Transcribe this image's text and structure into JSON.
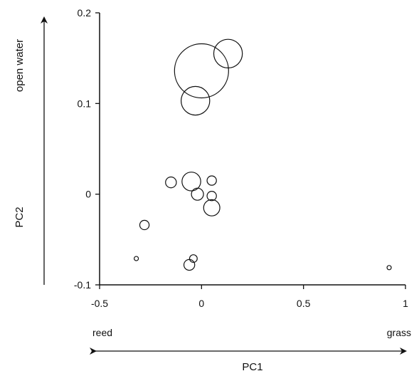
{
  "chart_data": {
    "type": "scatter",
    "variant": "bubble",
    "xlabel": "PC1",
    "ylabel": "PC2",
    "xlim": [
      -0.5,
      1.0
    ],
    "ylim": [
      -0.1,
      0.2
    ],
    "x_ticks": [
      {
        "value": -0.5,
        "label": "-0.5"
      },
      {
        "value": 0,
        "label": "0"
      },
      {
        "value": 0.5,
        "label": "0.5"
      },
      {
        "value": 1,
        "label": "1"
      }
    ],
    "y_ticks": [
      {
        "value": -0.1,
        "label": "-0.1"
      },
      {
        "value": 0,
        "label": "0"
      },
      {
        "value": 0.1,
        "label": "0.1"
      },
      {
        "value": 0.2,
        "label": "0.2"
      }
    ],
    "grid": false,
    "marker": "open circle, area proportional to size",
    "x_arrow_labels": {
      "left": "reed",
      "right": "grass"
    },
    "y_arrow_label": "open water",
    "points": [
      {
        "x": 0.0,
        "y": 0.136,
        "size": 1.0
      },
      {
        "x": 0.13,
        "y": 0.155,
        "size": 0.28
      },
      {
        "x": -0.03,
        "y": 0.103,
        "size": 0.28
      },
      {
        "x": -0.05,
        "y": 0.014,
        "size": 0.12
      },
      {
        "x": -0.15,
        "y": 0.013,
        "size": 0.04
      },
      {
        "x": 0.05,
        "y": 0.015,
        "size": 0.03
      },
      {
        "x": -0.02,
        "y": 0.0,
        "size": 0.05
      },
      {
        "x": 0.05,
        "y": -0.002,
        "size": 0.03
      },
      {
        "x": 0.05,
        "y": -0.015,
        "size": 0.09
      },
      {
        "x": -0.28,
        "y": -0.034,
        "size": 0.03
      },
      {
        "x": -0.32,
        "y": -0.071,
        "size": 0.003
      },
      {
        "x": -0.04,
        "y": -0.071,
        "size": 0.02
      },
      {
        "x": -0.06,
        "y": -0.078,
        "size": 0.04
      },
      {
        "x": 0.92,
        "y": -0.081,
        "size": 0.002
      }
    ],
    "colors": {
      "stroke": "#111111",
      "background": "#ffffff"
    }
  }
}
